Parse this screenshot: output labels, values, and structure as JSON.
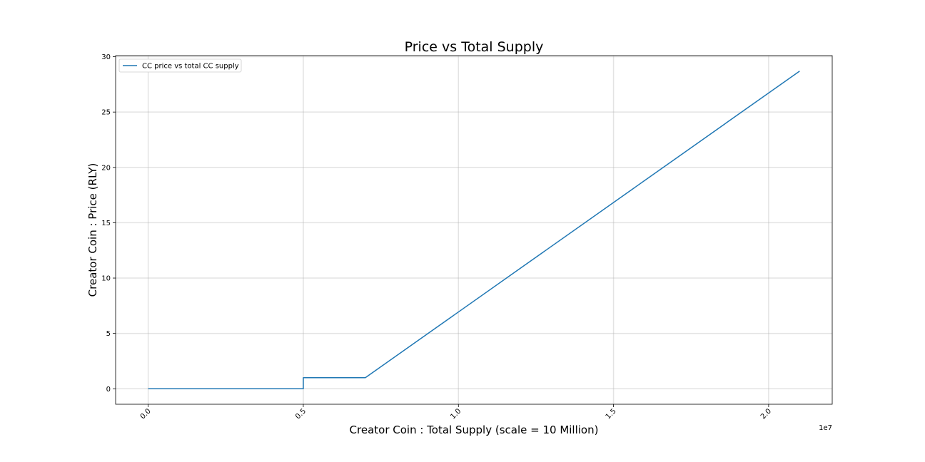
{
  "chart_data": {
    "type": "line",
    "title": "Price vs Total Supply",
    "xlabel": "Creator Coin : Total Supply (scale = 10 Million)",
    "ylabel": "Creator Coin : Price (RLY)",
    "x_offset_label": "1e7",
    "xlim": [
      -0.105,
      2.205
    ],
    "ylim": [
      -1.4,
      30.1
    ],
    "x_ticks": [
      0.0,
      0.5,
      1.0,
      1.5,
      2.0
    ],
    "x_tick_labels": [
      "0.0",
      "0.5",
      "1.0",
      "1.5",
      "2.0"
    ],
    "y_ticks": [
      0,
      5,
      10,
      15,
      20,
      25,
      30
    ],
    "y_tick_labels": [
      "0",
      "5",
      "10",
      "15",
      "20",
      "25",
      "30"
    ],
    "grid": true,
    "legend_position": "top-left",
    "series": [
      {
        "name": "CC price vs total CC supply",
        "color": "#1f77b4",
        "x": [
          0.0,
          0.5,
          0.5,
          0.7,
          2.1
        ],
        "y": [
          0,
          0,
          1,
          1,
          28.7
        ]
      }
    ]
  }
}
